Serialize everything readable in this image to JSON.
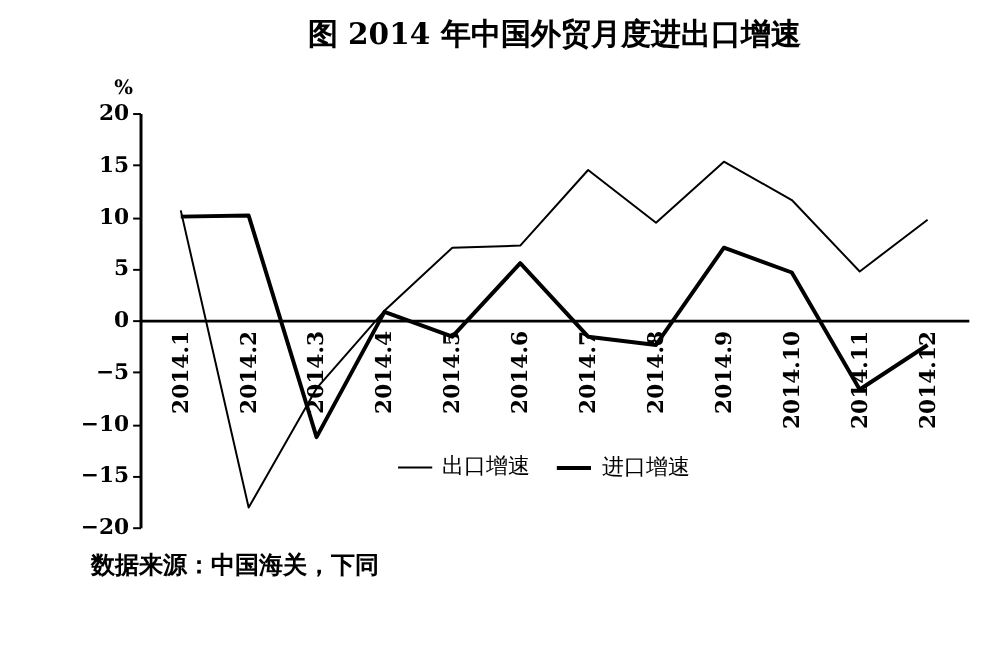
{
  "chart_data": {
    "type": "line",
    "title": "图    2014 年中国外贸月度进出口增速",
    "ylabel": "%",
    "categories": [
      "2014.1",
      "2014.2",
      "2014.3",
      "2014.4",
      "2014.5",
      "2014.6",
      "2014.7",
      "2014.8",
      "2014.9",
      "2014.10",
      "2014.11",
      "2014.12"
    ],
    "series": [
      {
        "name": "出口增速",
        "color": "#000000",
        "values": [
          10.6,
          -18.1,
          -6.6,
          0.9,
          7.0,
          7.2,
          14.5,
          9.4,
          15.3,
          11.6,
          4.7,
          9.7
        ]
      },
      {
        "name": "进口增速",
        "color": "#000000",
        "values": [
          10.0,
          10.1,
          -11.3,
          0.8,
          -1.6,
          5.5,
          -1.6,
          -2.4,
          7.0,
          4.6,
          -6.7,
          -2.4
        ]
      }
    ],
    "ylim": [
      -20,
      20
    ],
    "yticks": [
      -20,
      -15,
      -10,
      -5,
      0,
      5,
      10,
      15,
      20
    ],
    "grid": false,
    "legend": "bottom",
    "marker": "none",
    "line_style": "solid",
    "annotations": [
      "数据来源：中国海关，下同"
    ]
  }
}
